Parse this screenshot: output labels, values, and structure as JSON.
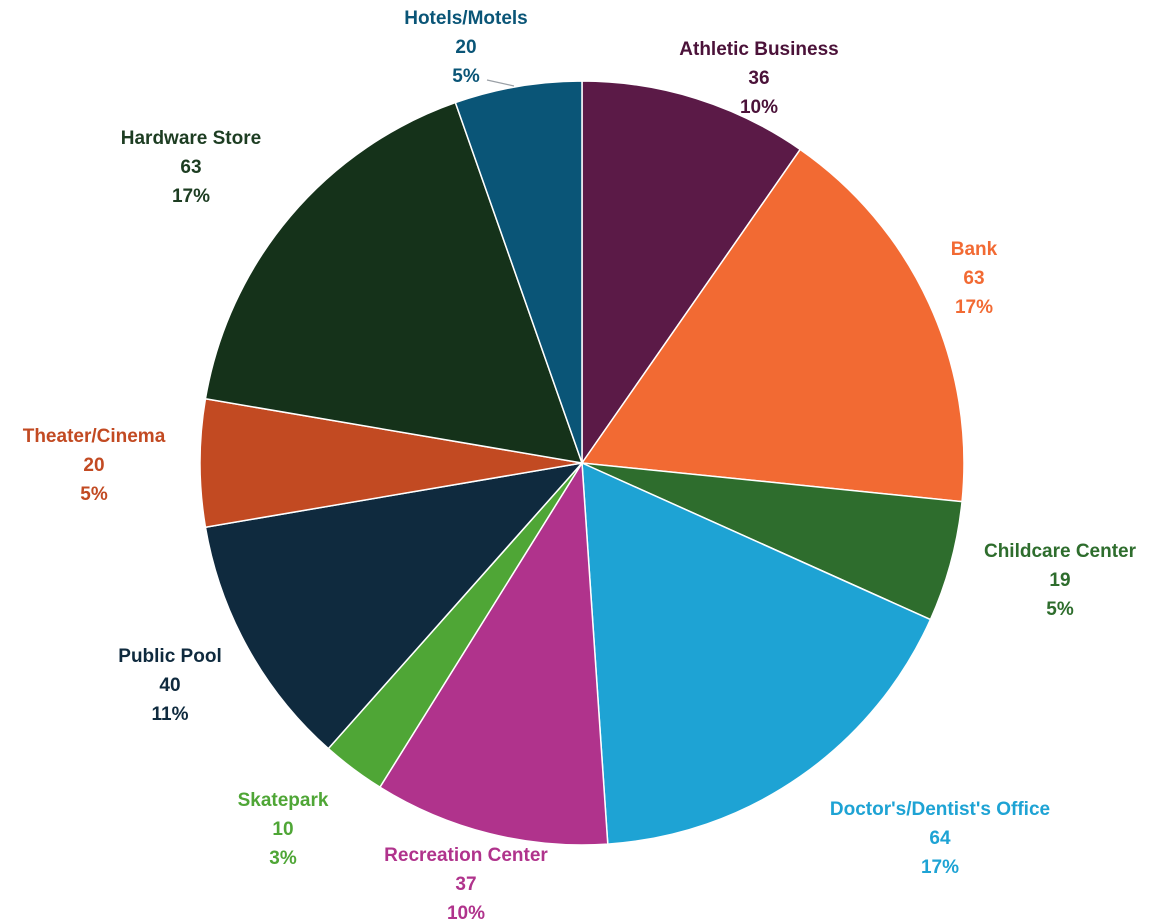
{
  "chart_data": {
    "type": "pie",
    "title": "",
    "slices": [
      {
        "label": "Athletic Business",
        "value": 36,
        "percent": "10%",
        "color": "#5b1a47"
      },
      {
        "label": "Bank",
        "value": 63,
        "percent": "17%",
        "color": "#f26a33"
      },
      {
        "label": "Childcare Center",
        "value": 19,
        "percent": "5%",
        "color": "#2e6d2d"
      },
      {
        "label": "Doctor's/Dentist's Office",
        "value": 64,
        "percent": "17%",
        "color": "#1ea3d4"
      },
      {
        "label": "Recreation Center",
        "value": 37,
        "percent": "10%",
        "color": "#b0338c"
      },
      {
        "label": "Skatepark",
        "value": 10,
        "percent": "3%",
        "color": "#4fa636"
      },
      {
        "label": "Public Pool",
        "value": 40,
        "percent": "11%",
        "color": "#0f2a3e"
      },
      {
        "label": "Theater/Cinema",
        "value": 20,
        "percent": "5%",
        "color": "#c24a22"
      },
      {
        "label": "Hardware Store",
        "value": 63,
        "percent": "17%",
        "color": "#15321a"
      },
      {
        "label": "Hotels/Motels",
        "value": 20,
        "percent": "5%",
        "color": "#0a5577"
      }
    ],
    "label_colors": {
      "Athletic Business": "#4b1239",
      "Bank": "#f26a33",
      "Childcare Center": "#2e6d2d",
      "Doctor's/Dentist's Office": "#1ea3d4",
      "Recreation Center": "#b0338c",
      "Skatepark": "#4fa636",
      "Public Pool": "#0f2a3e",
      "Theater/Cinema": "#c24a22",
      "Hardware Store": "#1d3d22",
      "Hotels/Motels": "#0a5577"
    }
  }
}
